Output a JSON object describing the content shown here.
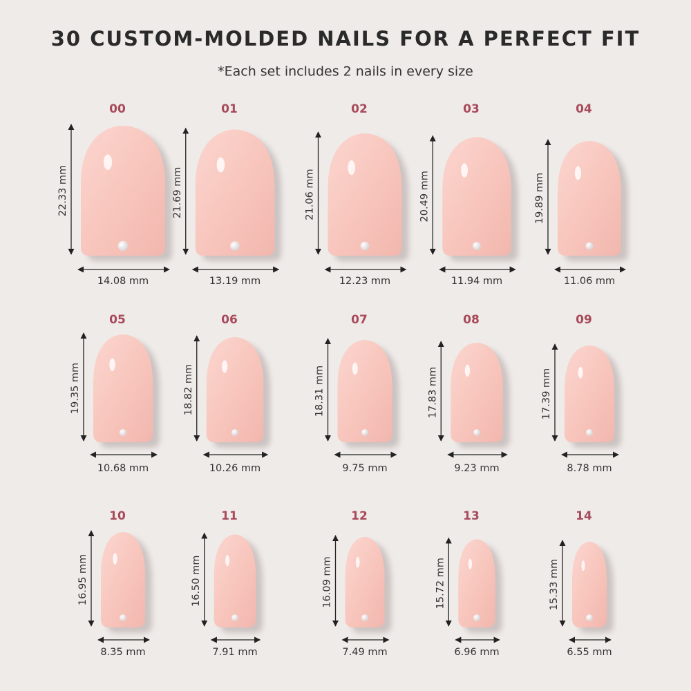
{
  "header": {
    "title": "30 CUSTOM-MOLDED NAILS FOR A PERFECT FIT",
    "subtitle": "*Each set includes 2 nails in every size"
  },
  "nails": [
    {
      "size": "00",
      "length": "22.33 mm",
      "width": "14.08 mm"
    },
    {
      "size": "01",
      "length": "21.69 mm",
      "width": "13.19 mm"
    },
    {
      "size": "02",
      "length": "21.06 mm",
      "width": "12.23 mm"
    },
    {
      "size": "03",
      "length": "20.49 mm",
      "width": "11.94 mm"
    },
    {
      "size": "04",
      "length": "19.89 mm",
      "width": "11.06 mm"
    },
    {
      "size": "05",
      "length": "19.35 mm",
      "width": "10.68 mm"
    },
    {
      "size": "06",
      "length": "18.82 mm",
      "width": "10.26 mm"
    },
    {
      "size": "07",
      "length": "18.31 mm",
      "width": "9.75 mm"
    },
    {
      "size": "08",
      "length": "17.83 mm",
      "width": "9.23 mm"
    },
    {
      "size": "09",
      "length": "17.39 mm",
      "width": "8.78 mm"
    },
    {
      "size": "10",
      "length": "16.95 mm",
      "width": "8.35 mm"
    },
    {
      "size": "11",
      "length": "16.50 mm",
      "width": "7.91 mm"
    },
    {
      "size": "12",
      "length": "16.09 mm",
      "width": "7.49 mm"
    },
    {
      "size": "13",
      "length": "15.72 mm",
      "width": "6.96 mm"
    },
    {
      "size": "14",
      "length": "15.33 mm",
      "width": "6.55 mm"
    }
  ]
}
